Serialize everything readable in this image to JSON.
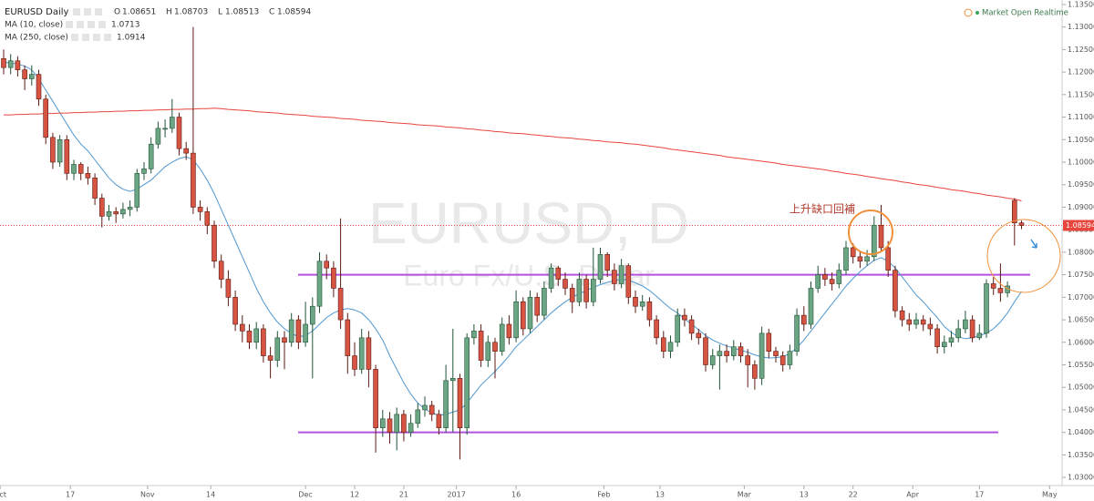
{
  "chart_data": {
    "type": "candlestick",
    "title": "EURUSD Daily",
    "ohlc_labels": [
      "O",
      "H",
      "L",
      "C"
    ],
    "up_color": "#6ba583",
    "up_border": "#225437",
    "down_color": "#d75442",
    "down_border": "#5b1a13",
    "open": [
      1.123,
      1.121,
      1.1225,
      1.1205,
      1.1185,
      1.1195,
      1.114,
      1.1055,
      1.1,
      1.105,
      1.0975,
      1.0995,
      1.0975,
      1.0965,
      1.092,
      1.088,
      1.089,
      1.0885,
      1.0895,
      1.09,
      1.0975,
      1.0985,
      1.104,
      1.1075,
      1.1075,
      1.11,
      1.103,
      1.102,
      1.09,
      1.089,
      1.086,
      1.078,
      1.074,
      1.07,
      1.064,
      1.0625,
      1.06,
      1.063,
      1.057,
      1.056,
      1.061,
      1.06,
      1.065,
      1.06,
      1.064,
      1.068,
      1.078,
      1.0765,
      1.072,
      1.065,
      1.057,
      1.054,
      1.061,
      1.054,
      1.041,
      1.043,
      1.04,
      1.044,
      1.04,
      1.042,
      1.045,
      1.046,
      1.044,
      1.041,
      1.0515,
      1.052,
      1.041,
      1.061,
      1.0625,
      1.056,
      1.06,
      1.058,
      1.064,
      1.061,
      1.069,
      1.063,
      1.07,
      1.066,
      1.072,
      1.0765,
      1.074,
      1.072,
      1.069,
      1.074,
      1.069,
      1.074,
      1.0795,
      1.076,
      1.073,
      1.077,
      1.07,
      1.068,
      1.069,
      1.065,
      1.061,
      1.058,
      1.06,
      1.066,
      1.065,
      1.062,
      1.061,
      1.055,
      1.057,
      1.058,
      1.057,
      1.059,
      1.057,
      1.055,
      1.052,
      1.062,
      1.058,
      1.057,
      1.055,
      1.058,
      1.066,
      1.064,
      1.072,
      1.075,
      1.074,
      1.073,
      1.076,
      1.081,
      1.079,
      1.078,
      1.079,
      1.086,
      1.081,
      1.076,
      1.067,
      1.065,
      1.064,
      1.065,
      1.064,
      1.063,
      1.059,
      1.06,
      1.061,
      1.063,
      1.065,
      1.061,
      1.062,
      1.073,
      1.072,
      1.071,
      1.0915,
      1.08651
    ],
    "high": [
      1.125,
      1.124,
      1.1235,
      1.1215,
      1.1215,
      1.1205,
      1.115,
      1.1065,
      1.106,
      1.106,
      1.1005,
      1.1,
      1.099,
      1.0975,
      1.093,
      1.0905,
      1.09,
      1.091,
      1.0915,
      1.0985,
      1.1,
      1.1055,
      1.109,
      1.1095,
      1.114,
      1.111,
      1.1045,
      1.13,
      1.0915,
      1.09,
      1.087,
      1.0795,
      1.076,
      1.0715,
      1.066,
      1.064,
      1.0645,
      1.064,
      1.059,
      1.0625,
      1.0625,
      1.0665,
      1.066,
      1.069,
      1.07,
      1.08,
      1.0795,
      1.078,
      1.0875,
      1.0665,
      1.06,
      1.063,
      1.0625,
      1.055,
      1.045,
      1.0445,
      1.0455,
      1.045,
      1.044,
      1.0465,
      1.048,
      1.047,
      1.045,
      1.055,
      1.063,
      1.053,
      1.062,
      1.064,
      1.064,
      1.0615,
      1.061,
      1.0655,
      1.066,
      1.0715,
      1.07,
      1.0715,
      1.071,
      1.0735,
      1.0775,
      1.077,
      1.0755,
      1.073,
      1.0755,
      1.075,
      1.081,
      1.081,
      1.08,
      1.0775,
      1.0785,
      1.0775,
      1.0715,
      1.0705,
      1.07,
      1.066,
      1.0625,
      1.0615,
      1.0675,
      1.0675,
      1.066,
      1.063,
      1.062,
      1.0585,
      1.0595,
      1.0595,
      1.0605,
      1.06,
      1.0585,
      1.056,
      1.0635,
      1.063,
      1.059,
      1.058,
      1.0595,
      1.0675,
      1.068,
      1.0735,
      1.077,
      1.0765,
      1.0755,
      1.0775,
      1.0825,
      1.082,
      1.08,
      1.0805,
      1.088,
      1.0905,
      1.0825,
      1.077,
      1.068,
      1.0665,
      1.0665,
      1.066,
      1.0655,
      1.064,
      1.0615,
      1.0625,
      1.065,
      1.067,
      1.066,
      1.064,
      1.074,
      1.0745,
      1.0775,
      1.0735,
      1.092,
      1.08703
    ],
    "low": [
      1.1195,
      1.1195,
      1.119,
      1.116,
      1.117,
      1.1125,
      1.104,
      1.0985,
      1.099,
      1.096,
      1.096,
      1.096,
      1.095,
      1.0905,
      1.0855,
      1.087,
      1.0865,
      1.0875,
      1.088,
      1.089,
      1.096,
      1.0975,
      1.103,
      1.1055,
      1.1065,
      1.1015,
      1.1005,
      1.0885,
      1.087,
      1.084,
      1.0765,
      1.072,
      1.068,
      1.0625,
      1.06,
      1.0585,
      1.0585,
      1.0555,
      1.052,
      1.0545,
      1.054,
      1.059,
      1.0585,
      1.059,
      1.052,
      1.0665,
      1.074,
      1.07,
      1.063,
      1.053,
      1.0525,
      1.053,
      1.05,
      1.0355,
      1.039,
      1.0375,
      1.036,
      1.038,
      1.039,
      1.041,
      1.0435,
      1.0425,
      1.0395,
      1.04,
      1.04,
      1.034,
      1.0395,
      1.0595,
      1.0545,
      1.0545,
      1.052,
      1.057,
      1.0595,
      1.06,
      1.0615,
      1.062,
      1.0645,
      1.065,
      1.071,
      1.0725,
      1.0705,
      1.0665,
      1.068,
      1.0675,
      1.068,
      1.073,
      1.0745,
      1.0715,
      1.072,
      1.0685,
      1.0665,
      1.067,
      1.0635,
      1.0595,
      1.0565,
      1.0565,
      1.059,
      1.0635,
      1.0605,
      1.0595,
      1.0535,
      1.054,
      1.0495,
      1.0555,
      1.056,
      1.0555,
      1.05,
      1.0495,
      1.0505,
      1.0565,
      1.0555,
      1.0535,
      1.054,
      1.057,
      1.0625,
      1.063,
      1.071,
      1.0725,
      1.0715,
      1.072,
      1.075,
      1.0775,
      1.0765,
      1.077,
      1.078,
      1.08,
      1.0745,
      1.0655,
      1.0635,
      1.0625,
      1.063,
      1.0625,
      1.0615,
      1.0575,
      1.0575,
      1.059,
      1.06,
      1.062,
      1.06,
      1.0605,
      1.061,
      1.0705,
      1.069,
      1.07,
      1.0815,
      1.08513
    ],
    "close": [
      1.121,
      1.1225,
      1.1205,
      1.1185,
      1.1195,
      1.114,
      1.1055,
      1.1,
      1.105,
      1.0975,
      1.0995,
      1.0975,
      1.0965,
      1.092,
      1.088,
      1.089,
      1.0885,
      1.0895,
      1.09,
      1.0975,
      1.0985,
      1.104,
      1.1075,
      1.1075,
      1.11,
      1.103,
      1.102,
      1.09,
      1.089,
      1.086,
      1.078,
      1.074,
      1.07,
      1.064,
      1.0625,
      1.06,
      1.063,
      1.057,
      1.056,
      1.061,
      1.06,
      1.065,
      1.06,
      1.064,
      1.068,
      1.078,
      1.0765,
      1.072,
      1.065,
      1.057,
      1.054,
      1.061,
      1.054,
      1.041,
      1.043,
      1.04,
      1.044,
      1.04,
      1.042,
      1.045,
      1.046,
      1.044,
      1.041,
      1.0515,
      1.052,
      1.041,
      1.061,
      1.0625,
      1.056,
      1.06,
      1.058,
      1.064,
      1.061,
      1.069,
      1.063,
      1.07,
      1.066,
      1.072,
      1.0765,
      1.074,
      1.072,
      1.069,
      1.074,
      1.069,
      1.074,
      1.0795,
      1.076,
      1.073,
      1.077,
      1.07,
      1.068,
      1.069,
      1.065,
      1.061,
      1.058,
      1.06,
      1.066,
      1.065,
      1.062,
      1.061,
      1.055,
      1.057,
      1.058,
      1.057,
      1.059,
      1.057,
      1.055,
      1.052,
      1.062,
      1.058,
      1.057,
      1.055,
      1.058,
      1.066,
      1.064,
      1.072,
      1.075,
      1.074,
      1.073,
      1.076,
      1.081,
      1.079,
      1.078,
      1.079,
      1.086,
      1.081,
      1.076,
      1.067,
      1.065,
      1.064,
      1.065,
      1.064,
      1.063,
      1.059,
      1.06,
      1.061,
      1.063,
      1.065,
      1.061,
      1.062,
      1.073,
      1.072,
      1.071,
      1.0725,
      1.0865,
      1.08594
    ],
    "series": [
      {
        "name": "MA (10, close)",
        "color": "#4f97d1",
        "values": [
          1.1222,
          1.122,
          1.1218,
          1.1213,
          1.1205,
          1.1185,
          1.116,
          1.1135,
          1.111,
          1.1085,
          1.106,
          1.104,
          1.1025,
          1.1005,
          1.0985,
          1.0965,
          1.095,
          1.094,
          1.0935,
          1.094,
          1.095,
          1.096,
          1.0975,
          1.099,
          1.1,
          1.1008,
          1.1012,
          1.1005,
          1.0985,
          1.096,
          1.093,
          1.0895,
          1.086,
          1.0825,
          1.079,
          1.0755,
          1.072,
          1.069,
          1.0665,
          1.0645,
          1.063,
          1.062,
          1.0612,
          1.0615,
          1.0625,
          1.064,
          1.0655,
          1.0665,
          1.0672,
          1.0675,
          1.0672,
          1.0665,
          1.065,
          1.063,
          1.0605,
          1.057,
          1.054,
          1.051,
          1.0485,
          1.0465,
          1.0452,
          1.0443,
          1.0438,
          1.044,
          1.0445,
          1.045,
          1.0465,
          1.0485,
          1.0505,
          1.052,
          1.0535,
          1.0552,
          1.057,
          1.059,
          1.0605,
          1.062,
          1.0635,
          1.065,
          1.0665,
          1.0678,
          1.069,
          1.07,
          1.0708,
          1.0715,
          1.0722,
          1.0728,
          1.0733,
          1.0737,
          1.074,
          1.0738,
          1.0732,
          1.0725,
          1.0715,
          1.0702,
          1.0688,
          1.0675,
          1.0665,
          1.0652,
          1.064,
          1.0628,
          1.0615,
          1.0605,
          1.0598,
          1.0592,
          1.0587,
          1.0582,
          1.0578,
          1.0572,
          1.0568,
          1.0565,
          1.0566,
          1.0568,
          1.0575,
          1.0588,
          1.0605,
          1.0625,
          1.0645,
          1.0665,
          1.0685,
          1.0705,
          1.0725,
          1.0742,
          1.0757,
          1.077,
          1.0782,
          1.0788,
          1.078,
          1.0765,
          1.0745,
          1.0725,
          1.0705,
          1.069,
          1.0672,
          1.0655,
          1.0635,
          1.0622,
          1.0612,
          1.0608,
          1.061,
          1.0615,
          1.062,
          1.063,
          1.0645,
          1.0665,
          1.069,
          1.0713
        ]
      },
      {
        "name": "MA (250, close)",
        "color": "#e8453c",
        "values": [
          1.1105,
          1.1105,
          1.1106,
          1.1106,
          1.1107,
          1.1107,
          1.1108,
          1.1108,
          1.1109,
          1.1109,
          1.111,
          1.111,
          1.1111,
          1.1111,
          1.1112,
          1.1112,
          1.1113,
          1.1113,
          1.1114,
          1.1114,
          1.1115,
          1.1115,
          1.1116,
          1.1116,
          1.1117,
          1.1117,
          1.1118,
          1.1118,
          1.1119,
          1.1119,
          1.112,
          1.1119,
          1.1117,
          1.1116,
          1.1115,
          1.1114,
          1.1112,
          1.1111,
          1.111,
          1.1109,
          1.1107,
          1.1106,
          1.1105,
          1.1104,
          1.1102,
          1.1101,
          1.11,
          1.1099,
          1.1097,
          1.1096,
          1.1095,
          1.1093,
          1.1092,
          1.1091,
          1.109,
          1.1088,
          1.1087,
          1.1086,
          1.1085,
          1.1083,
          1.1082,
          1.1081,
          1.108,
          1.1078,
          1.1077,
          1.1076,
          1.1074,
          1.1073,
          1.1071,
          1.107,
          1.1068,
          1.1067,
          1.1065,
          1.1064,
          1.1063,
          1.1061,
          1.106,
          1.1058,
          1.1057,
          1.1055,
          1.1054,
          1.1053,
          1.1051,
          1.105,
          1.1048,
          1.1047,
          1.1045,
          1.1044,
          1.1043,
          1.1041,
          1.104,
          1.1038,
          1.1036,
          1.1034,
          1.1032,
          1.1029,
          1.1027,
          1.1025,
          1.1023,
          1.1021,
          1.1019,
          1.1017,
          1.1015,
          1.1012,
          1.101,
          1.1008,
          1.1006,
          1.1004,
          1.1002,
          1.1,
          1.0998,
          1.0995,
          1.0993,
          1.0991,
          1.0989,
          1.0987,
          1.0985,
          1.0983,
          1.098,
          1.0978,
          1.0975,
          1.0973,
          1.0971,
          1.0968,
          1.0966,
          1.0963,
          1.0961,
          1.0959,
          1.0956,
          1.0954,
          1.0951,
          1.0949,
          1.0947,
          1.0944,
          1.0942,
          1.0939,
          1.0937,
          1.0935,
          1.0932,
          1.093,
          1.0927,
          1.0925,
          1.0923,
          1.092,
          1.0918,
          1.0914
        ]
      }
    ],
    "ylim": [
      1.0282,
      1.136
    ],
    "yticks": [
      {
        "value": 1.03,
        "label": "1.03000"
      },
      {
        "value": 1.035,
        "label": "1.03500"
      },
      {
        "value": 1.04,
        "label": "1.04000"
      },
      {
        "value": 1.045,
        "label": "1.04500"
      },
      {
        "value": 1.05,
        "label": "1.05000"
      },
      {
        "value": 1.055,
        "label": "1.05500"
      },
      {
        "value": 1.06,
        "label": "1.06000"
      },
      {
        "value": 1.065,
        "label": "1.06500"
      },
      {
        "value": 1.07,
        "label": "1.07000"
      },
      {
        "value": 1.075,
        "label": "1.07500"
      },
      {
        "value": 1.08,
        "label": "1.08000"
      },
      {
        "value": 1.085,
        "label": "1.08500"
      },
      {
        "value": 1.09,
        "label": "1.09000"
      },
      {
        "value": 1.095,
        "label": "1.09500"
      },
      {
        "value": 1.1,
        "label": "1.10000"
      },
      {
        "value": 1.105,
        "label": "1.10500"
      },
      {
        "value": 1.11,
        "label": "1.11000"
      },
      {
        "value": 1.115,
        "label": "1.11500"
      },
      {
        "value": 1.12,
        "label": "1.12000"
      },
      {
        "value": 1.125,
        "label": "1.12500"
      },
      {
        "value": 1.13,
        "label": "1.13000"
      },
      {
        "value": 1.135,
        "label": "1.13500"
      }
    ],
    "xticks": [
      {
        "value": -0.5,
        "label": "Oct"
      },
      {
        "value": 9.5,
        "label": "17"
      },
      {
        "value": 20.5,
        "label": "Nov"
      },
      {
        "value": 29.5,
        "label": "14"
      },
      {
        "value": 43,
        "label": "Dec"
      },
      {
        "value": 50,
        "label": "12"
      },
      {
        "value": 57,
        "label": "21"
      },
      {
        "value": 64.5,
        "label": "2017"
      },
      {
        "value": 73,
        "label": "16"
      },
      {
        "value": 85.5,
        "label": "Feb"
      },
      {
        "value": 93.5,
        "label": "13"
      },
      {
        "value": 105.5,
        "label": "Mar"
      },
      {
        "value": 114,
        "label": "13"
      },
      {
        "value": 121,
        "label": "22"
      },
      {
        "value": 129.5,
        "label": "Apr"
      },
      {
        "value": 139,
        "label": "17"
      },
      {
        "value": 149,
        "label": "May"
      }
    ],
    "hlines": [
      {
        "value": 1.075,
        "color": "#b450e0"
      },
      {
        "value": 1.04,
        "color": "#b450e0"
      }
    ],
    "last_price_color": "#e8453c",
    "watermark": "EURUSD, D",
    "watermark_subtitle": "Euro Fx/U.S. Dollar",
    "annotation": "上升缺口回補",
    "status": "Market Open Realtime"
  }
}
